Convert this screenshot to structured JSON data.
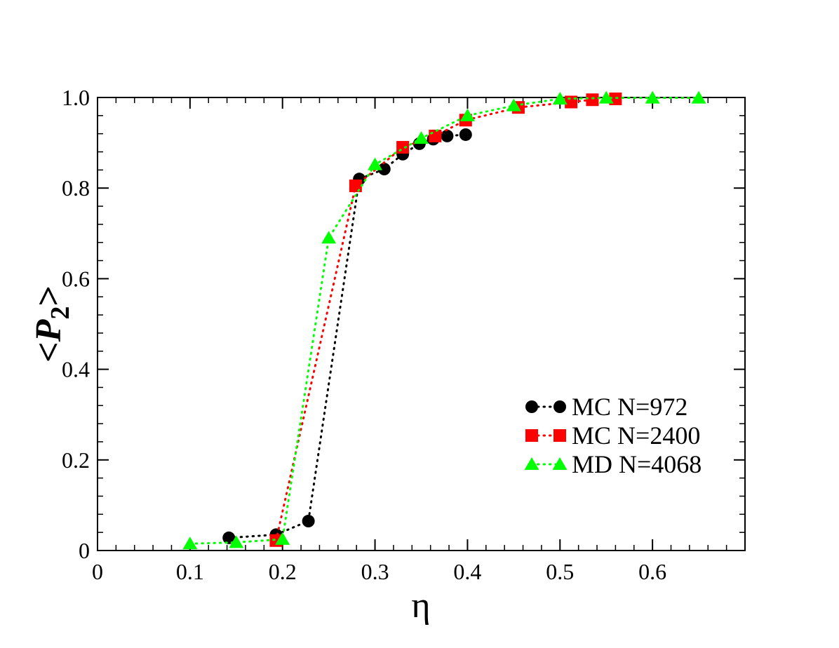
{
  "chart_data": {
    "type": "scatter",
    "title": "",
    "xlabel": "η",
    "ylabel": {
      "open": "<",
      "var": "P",
      "sub": "2",
      "close": ">"
    },
    "xlim": [
      0,
      0.7
    ],
    "ylim": [
      0,
      1.0
    ],
    "x_ticks": [
      {
        "value": 0,
        "label": "0"
      },
      {
        "value": 0.1,
        "label": "0.1"
      },
      {
        "value": 0.2,
        "label": "0.2"
      },
      {
        "value": 0.3,
        "label": "0.3"
      },
      {
        "value": 0.4,
        "label": "0.4"
      },
      {
        "value": 0.5,
        "label": "0.5"
      },
      {
        "value": 0.6,
        "label": "0.6"
      }
    ],
    "y_ticks": [
      {
        "value": 0,
        "label": "0"
      },
      {
        "value": 0.2,
        "label": "0.2"
      },
      {
        "value": 0.4,
        "label": "0.4"
      },
      {
        "value": 0.6,
        "label": "0.6"
      },
      {
        "value": 0.8,
        "label": "0.8"
      },
      {
        "value": 1.0,
        "label": "1.0"
      }
    ],
    "x_minor_step": 0.02,
    "y_minor_step": 0.04,
    "legend_position": "lower-right",
    "series": [
      {
        "name": "MC N=972",
        "marker": "circle",
        "color": "#000000",
        "line_style": "dotted",
        "x": [
          0.142,
          0.193,
          0.228,
          0.283,
          0.31,
          0.33,
          0.348,
          0.363,
          0.378,
          0.398
        ],
        "y": [
          0.028,
          0.035,
          0.065,
          0.82,
          0.842,
          0.875,
          0.898,
          0.908,
          0.915,
          0.918
        ]
      },
      {
        "name": "MC N=2400",
        "marker": "square",
        "color": "#ff0000",
        "line_style": "dotted",
        "x": [
          0.193,
          0.279,
          0.33,
          0.365,
          0.398,
          0.455,
          0.512,
          0.535,
          0.56
        ],
        "y": [
          0.022,
          0.805,
          0.89,
          0.915,
          0.95,
          0.978,
          0.99,
          0.995,
          0.997
        ]
      },
      {
        "name": "MD N=4068",
        "marker": "triangle",
        "color": "#00ff00",
        "line_style": "dotted",
        "x": [
          0.1,
          0.15,
          0.2,
          0.25,
          0.3,
          0.35,
          0.4,
          0.45,
          0.5,
          0.55,
          0.6,
          0.65
        ],
        "y": [
          0.015,
          0.018,
          0.025,
          0.69,
          0.852,
          0.91,
          0.96,
          0.982,
          0.997,
          0.999,
          0.999,
          0.999
        ]
      }
    ]
  }
}
